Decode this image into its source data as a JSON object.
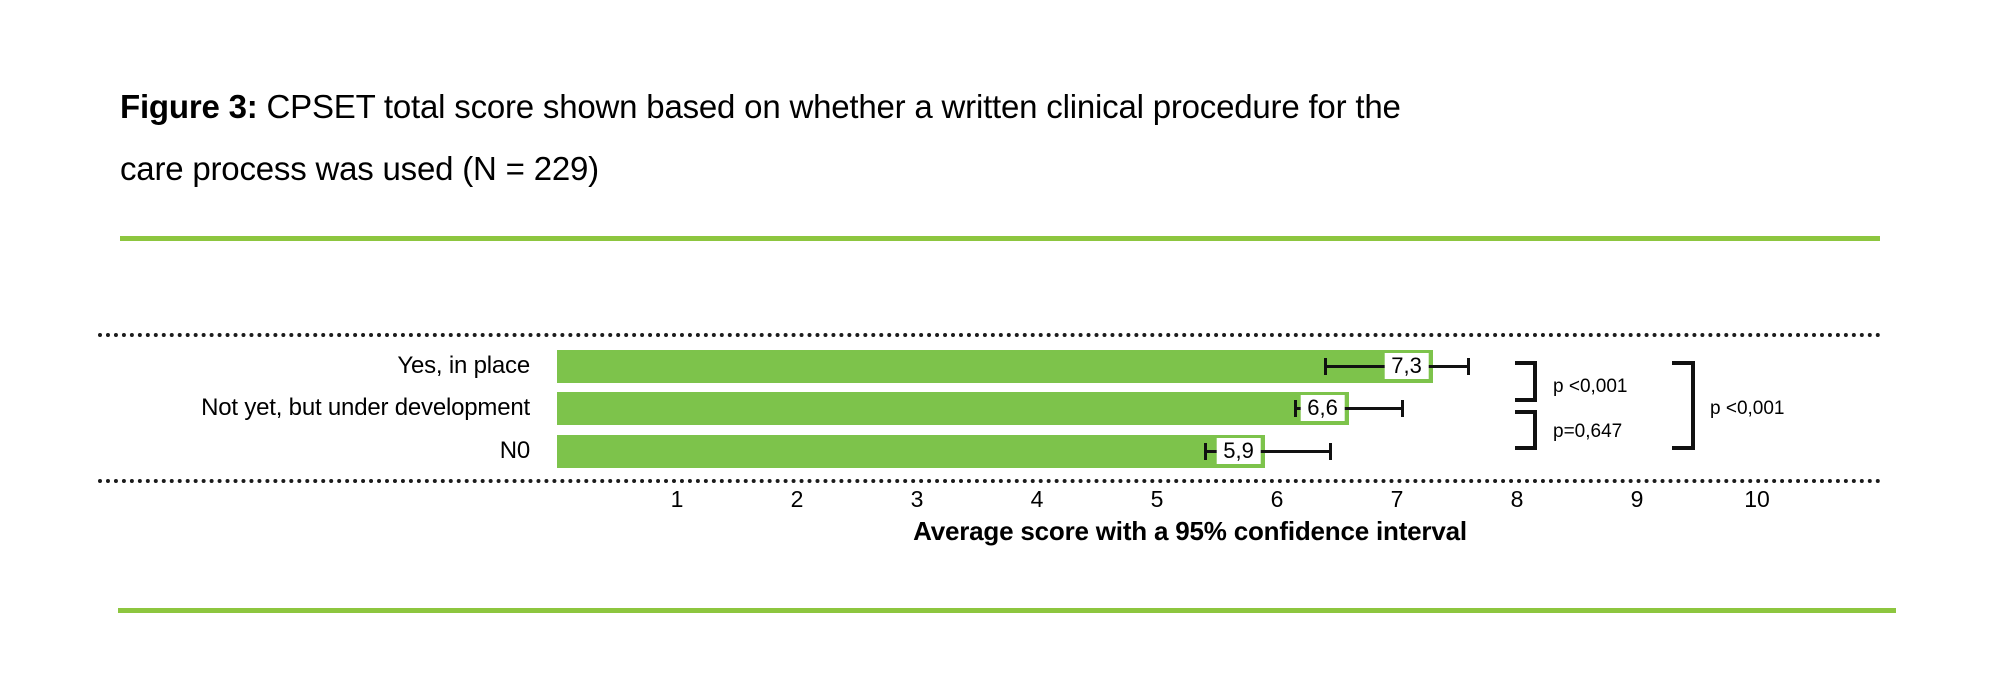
{
  "figure": {
    "title_prefix": "Figure 3:",
    "title_line1_rest": " CPSET total score shown based on whether a written clinical procedure for the",
    "title_line2": "care process was used (N = 229)"
  },
  "colors": {
    "bar_fill": "#7DC34B",
    "horizontal_rule": "#8DC63F",
    "axis_dotted_line": "#1c1c1c",
    "text": "#000000",
    "stat_lines": "#111111"
  },
  "chart_data": {
    "type": "bar",
    "orientation": "horizontal",
    "title": "CPSET total score by use of a written clinical procedure",
    "categories": [
      "Yes, in place",
      "Not yet, but under development",
      "N0"
    ],
    "values": [
      7.3,
      6.6,
      5.9
    ],
    "value_labels": [
      "7,3",
      "6,6",
      "5,9"
    ],
    "ci": [
      [
        6.4,
        7.6
      ],
      [
        6.15,
        7.05
      ],
      [
        5.4,
        6.45
      ]
    ],
    "xlabel": "Average score with a 95% confidence interval",
    "xticks": [
      1,
      2,
      3,
      4,
      5,
      6,
      7,
      8,
      9,
      10
    ],
    "xlim": [
      0,
      11
    ],
    "grid": "dotted horizontal borders above and below plot only",
    "legend": null,
    "significance": [
      {
        "label": "p <0,001",
        "between": [
          "Yes, in place",
          "Not yet, but under development"
        ],
        "bracket": "small-top"
      },
      {
        "label": "p=0,647",
        "between": [
          "Not yet, but under development",
          "N0"
        ],
        "bracket": "small-bottom"
      },
      {
        "label": "p <0,001",
        "between": [
          "Yes, in place",
          "N0"
        ],
        "bracket": "large"
      }
    ]
  }
}
